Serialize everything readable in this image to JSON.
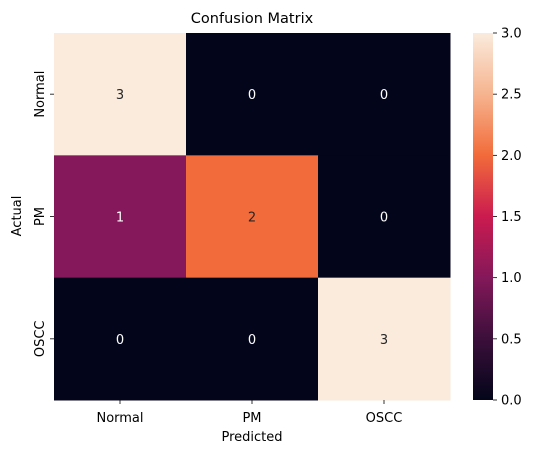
{
  "chart_data": {
    "type": "heatmap",
    "title": "Confusion Matrix",
    "xlabel": "Predicted",
    "ylabel": "Actual",
    "x_categories": [
      "Normal",
      "PM",
      "OSCC"
    ],
    "y_categories": [
      "Normal",
      "PM",
      "OSCC"
    ],
    "values": [
      [
        3,
        0,
        0
      ],
      [
        1,
        2,
        0
      ],
      [
        0,
        0,
        3
      ]
    ],
    "value_range": [
      0,
      3
    ],
    "colorbar_ticks": [
      "0.0",
      "0.5",
      "1.0",
      "1.5",
      "2.0",
      "2.5",
      "3.0"
    ],
    "colormap": "rocket",
    "grid": false
  }
}
